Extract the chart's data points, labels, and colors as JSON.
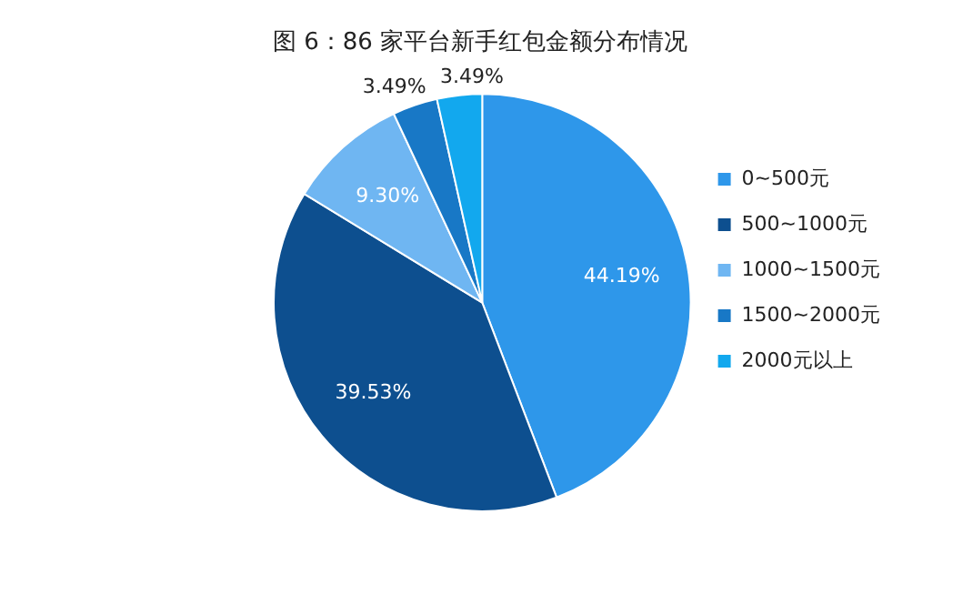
{
  "chart_data": {
    "type": "pie",
    "title": "图 6：86 家平台新手红包金额分布情况",
    "categories": [
      "0~500元",
      "500~1000元",
      "1000~1500元",
      "1500~2000元",
      "2000元以上"
    ],
    "values": [
      44.19,
      39.53,
      9.3,
      3.49,
      3.49
    ],
    "value_labels": [
      "44.19%",
      "39.53%",
      "9.30%",
      "3.49%",
      "3.49%"
    ],
    "colors": [
      "#2e97ea",
      "#0d4f8f",
      "#6fb6f2",
      "#1878c6",
      "#12a8ee"
    ],
    "legend": "right"
  }
}
